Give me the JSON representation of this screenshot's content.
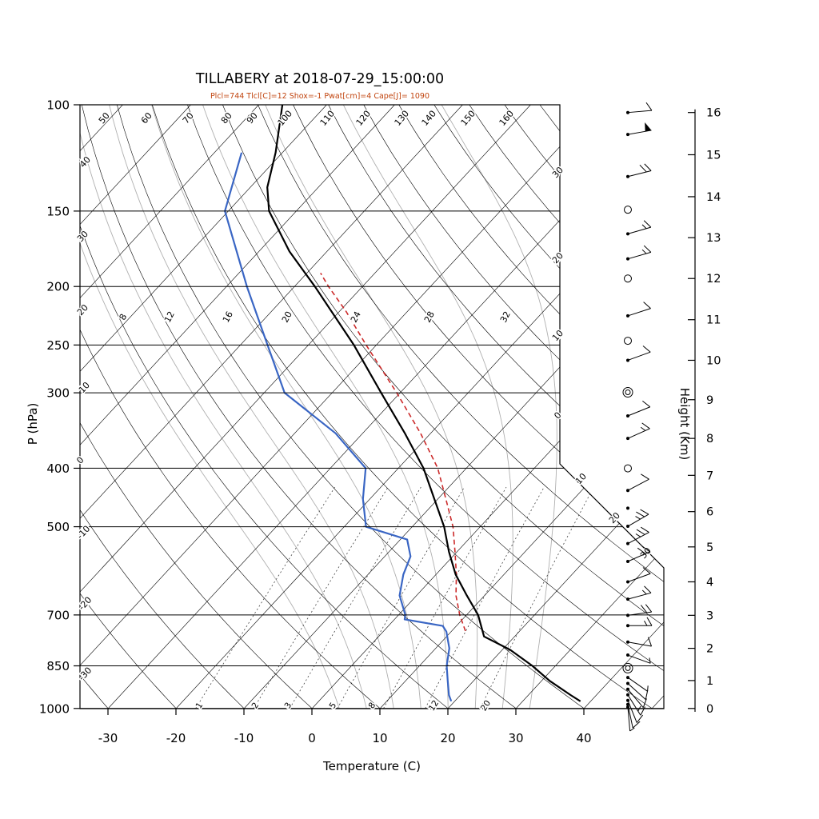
{
  "header": {
    "title": "TILLABERY at 2018-07-29_15:00:00",
    "subtitle": "Plcl=744 Tlcl[C]=12 Shox=-1 Pwat[cm]=4 Cape[J]= 1090"
  },
  "colors": {
    "temperature_line": "#000000",
    "dewpoint_line": "#3a66c4",
    "parcel_line": "#cc2a2a",
    "subtitle": "#c1440e",
    "moist_adiabat": "#b0b0b0",
    "grid": "#000000"
  },
  "axes": {
    "pressure": {
      "label": "P (hPa)",
      "ticks": [
        100,
        150,
        200,
        250,
        300,
        400,
        500,
        700,
        850,
        1000
      ]
    },
    "temperature": {
      "label": "Temperature (C)",
      "ticks": [
        -30,
        -20,
        -10,
        0,
        10,
        20,
        30,
        40
      ]
    },
    "height": {
      "label": "Height (Km)",
      "ticks": [
        0,
        1,
        2,
        3,
        4,
        5,
        6,
        7,
        8,
        9,
        10,
        11,
        12,
        13,
        14,
        15,
        16
      ]
    }
  },
  "chart_data": {
    "type": "line",
    "subtype": "skew-t-log-p",
    "isotherms": {
      "min": -120,
      "max": 50,
      "step": 10
    },
    "dry_adiabats": {
      "min": -30,
      "max": 160,
      "step": 10
    },
    "moist_adiabats": {
      "values": [
        4,
        8,
        12,
        16,
        20,
        24,
        28,
        32
      ]
    },
    "mixing_ratio": {
      "values": [
        1,
        2,
        3,
        5,
        8,
        12,
        20
      ]
    },
    "height_km_pressures": [
      1000,
      899,
      795,
      701,
      617,
      540,
      472,
      411,
      357,
      308,
      265,
      227,
      194,
      166,
      142,
      121,
      103
    ],
    "temperature_profile": [
      [
        973,
        38.5
      ],
      [
        950,
        36.2
      ],
      [
        900,
        31.2
      ],
      [
        850,
        26.6
      ],
      [
        800,
        21.2
      ],
      [
        760,
        15.5
      ],
      [
        700,
        11.7
      ],
      [
        650,
        7.4
      ],
      [
        600,
        2.9
      ],
      [
        550,
        -1.2
      ],
      [
        500,
        -5.3
      ],
      [
        450,
        -10.5
      ],
      [
        400,
        -16.3
      ],
      [
        350,
        -23.8
      ],
      [
        300,
        -32.8
      ],
      [
        250,
        -43.3
      ],
      [
        200,
        -57.0
      ],
      [
        175,
        -65.5
      ],
      [
        150,
        -74.0
      ],
      [
        137,
        -77.5
      ],
      [
        120,
        -81.0
      ],
      [
        100,
        -86.5
      ]
    ],
    "dewpoint_profile": [
      [
        973,
        19.5
      ],
      [
        950,
        18.3
      ],
      [
        900,
        16.2
      ],
      [
        850,
        14.0
      ],
      [
        795,
        12.0
      ],
      [
        746,
        9.3
      ],
      [
        730,
        8.0
      ],
      [
        712,
        1.5
      ],
      [
        700,
        1.0
      ],
      [
        650,
        -2.5
      ],
      [
        600,
        -4.8
      ],
      [
        560,
        -6.2
      ],
      [
        525,
        -9.0
      ],
      [
        500,
        -16.8
      ],
      [
        450,
        -21.0
      ],
      [
        400,
        -24.8
      ],
      [
        350,
        -34.0
      ],
      [
        300,
        -47.0
      ],
      [
        250,
        -56.0
      ],
      [
        200,
        -67.0
      ],
      [
        150,
        -80.5
      ],
      [
        120,
        -86.0
      ]
    ],
    "parcel_profile": [
      [
        744,
        12.0
      ],
      [
        700,
        9.0
      ],
      [
        650,
        5.8
      ],
      [
        600,
        3.0
      ],
      [
        550,
        -0.3
      ],
      [
        500,
        -4.0
      ],
      [
        450,
        -8.8
      ],
      [
        400,
        -14.2
      ],
      [
        350,
        -21.5
      ],
      [
        300,
        -30.5
      ],
      [
        250,
        -41.5
      ],
      [
        220,
        -49.0
      ],
      [
        200,
        -55.0
      ],
      [
        190,
        -58.0
      ]
    ],
    "line_labels": {
      "left_edge": [
        [
          "40",
          109,
          205
        ],
        [
          "30",
          106,
          298
        ],
        [
          "20",
          106,
          390
        ],
        [
          "10",
          108,
          487
        ],
        [
          "0",
          103,
          578
        ],
        [
          "-10",
          107,
          668
        ],
        [
          "-20",
          109,
          757
        ],
        [
          "-30",
          109,
          845
        ]
      ],
      "top_edge": [
        [
          "50",
          133
        ],
        [
          "60",
          186
        ],
        [
          "70",
          238
        ],
        [
          "80",
          286
        ],
        [
          "90",
          318
        ],
        [
          "100",
          359
        ],
        [
          "110",
          412
        ],
        [
          "120",
          457
        ],
        [
          "130",
          505
        ],
        [
          "140",
          539
        ],
        [
          "150",
          588
        ],
        [
          "160",
          636
        ]
      ],
      "right_edge": [
        [
          "30",
          700,
          218
        ],
        [
          "20",
          700,
          325
        ],
        [
          "10",
          700,
          422
        ],
        [
          "0",
          700,
          522
        ]
      ],
      "right_diagonal": [
        [
          "10",
          729,
          601
        ],
        [
          "20",
          771,
          650
        ],
        [
          "30",
          810,
          694
        ]
      ],
      "moist_row": [
        [
          "8",
          157
        ],
        [
          "12",
          215
        ],
        [
          "16",
          288
        ],
        [
          "20",
          362
        ],
        [
          "24",
          448
        ],
        [
          "28",
          540
        ],
        [
          "32",
          635
        ]
      ],
      "mixing_row": [
        [
          "1",
          252
        ],
        [
          "2",
          322
        ],
        [
          "3",
          363
        ],
        [
          "5",
          419
        ],
        [
          "8",
          468
        ],
        [
          "12",
          545
        ],
        [
          "20",
          610
        ]
      ]
    },
    "wind_barbs": [
      {
        "km": 0.05,
        "spd": 5,
        "dir": 175
      },
      {
        "km": 0.15,
        "spd": 10,
        "dir": 168
      },
      {
        "km": 0.3,
        "spd": 10,
        "dir": 158
      },
      {
        "km": 0.5,
        "spd": 15,
        "dir": 148
      },
      {
        "km": 0.7,
        "spd": 10,
        "dir": 140
      },
      {
        "km": 0.9,
        "spd": 10,
        "dir": 132
      },
      {
        "km": 1.1,
        "spd": 5,
        "dir": 125
      },
      {
        "km": 1.4,
        "spd": 0,
        "style": "calm2"
      },
      {
        "km": 1.8,
        "spd": 5,
        "dir": 110
      },
      {
        "km": 2.2,
        "spd": 10,
        "dir": 100
      },
      {
        "km": 2.7,
        "spd": 15,
        "dir": 90
      },
      {
        "km": 3.0,
        "spd": 20,
        "dir": 82
      },
      {
        "km": 3.5,
        "spd": 15,
        "dir": 75
      },
      {
        "km": 4.0,
        "spd": 10,
        "dir": 70
      },
      {
        "km": 4.6,
        "spd": 20,
        "dir": 66
      },
      {
        "km": 5.1,
        "spd": 25,
        "dir": 62
      },
      {
        "km": 5.6,
        "spd": 25,
        "dir": 60
      },
      {
        "km": 6.1,
        "style": "dot"
      },
      {
        "km": 6.6,
        "spd": 10,
        "dir": 62
      },
      {
        "km": 7.2,
        "spd": 0,
        "style": "calm"
      },
      {
        "km": 8.0,
        "spd": 15,
        "dir": 66
      },
      {
        "km": 8.6,
        "spd": 10,
        "dir": 68
      },
      {
        "km": 9.2,
        "spd": 0,
        "style": "calm2"
      },
      {
        "km": 10.0,
        "spd": 10,
        "dir": 70
      },
      {
        "km": 10.5,
        "spd": 0,
        "style": "calm"
      },
      {
        "km": 11.1,
        "spd": 10,
        "dir": 72
      },
      {
        "km": 12.0,
        "spd": 0,
        "style": "calm"
      },
      {
        "km": 12.5,
        "spd": 15,
        "dir": 74
      },
      {
        "km": 13.1,
        "spd": 15,
        "dir": 74
      },
      {
        "km": 13.7,
        "spd": 0,
        "style": "calm"
      },
      {
        "km": 14.5,
        "spd": 20,
        "dir": 76
      },
      {
        "km": 15.5,
        "spd": 50,
        "dir": 80
      },
      {
        "km": 16.0,
        "spd": 10,
        "dir": 85
      }
    ]
  }
}
